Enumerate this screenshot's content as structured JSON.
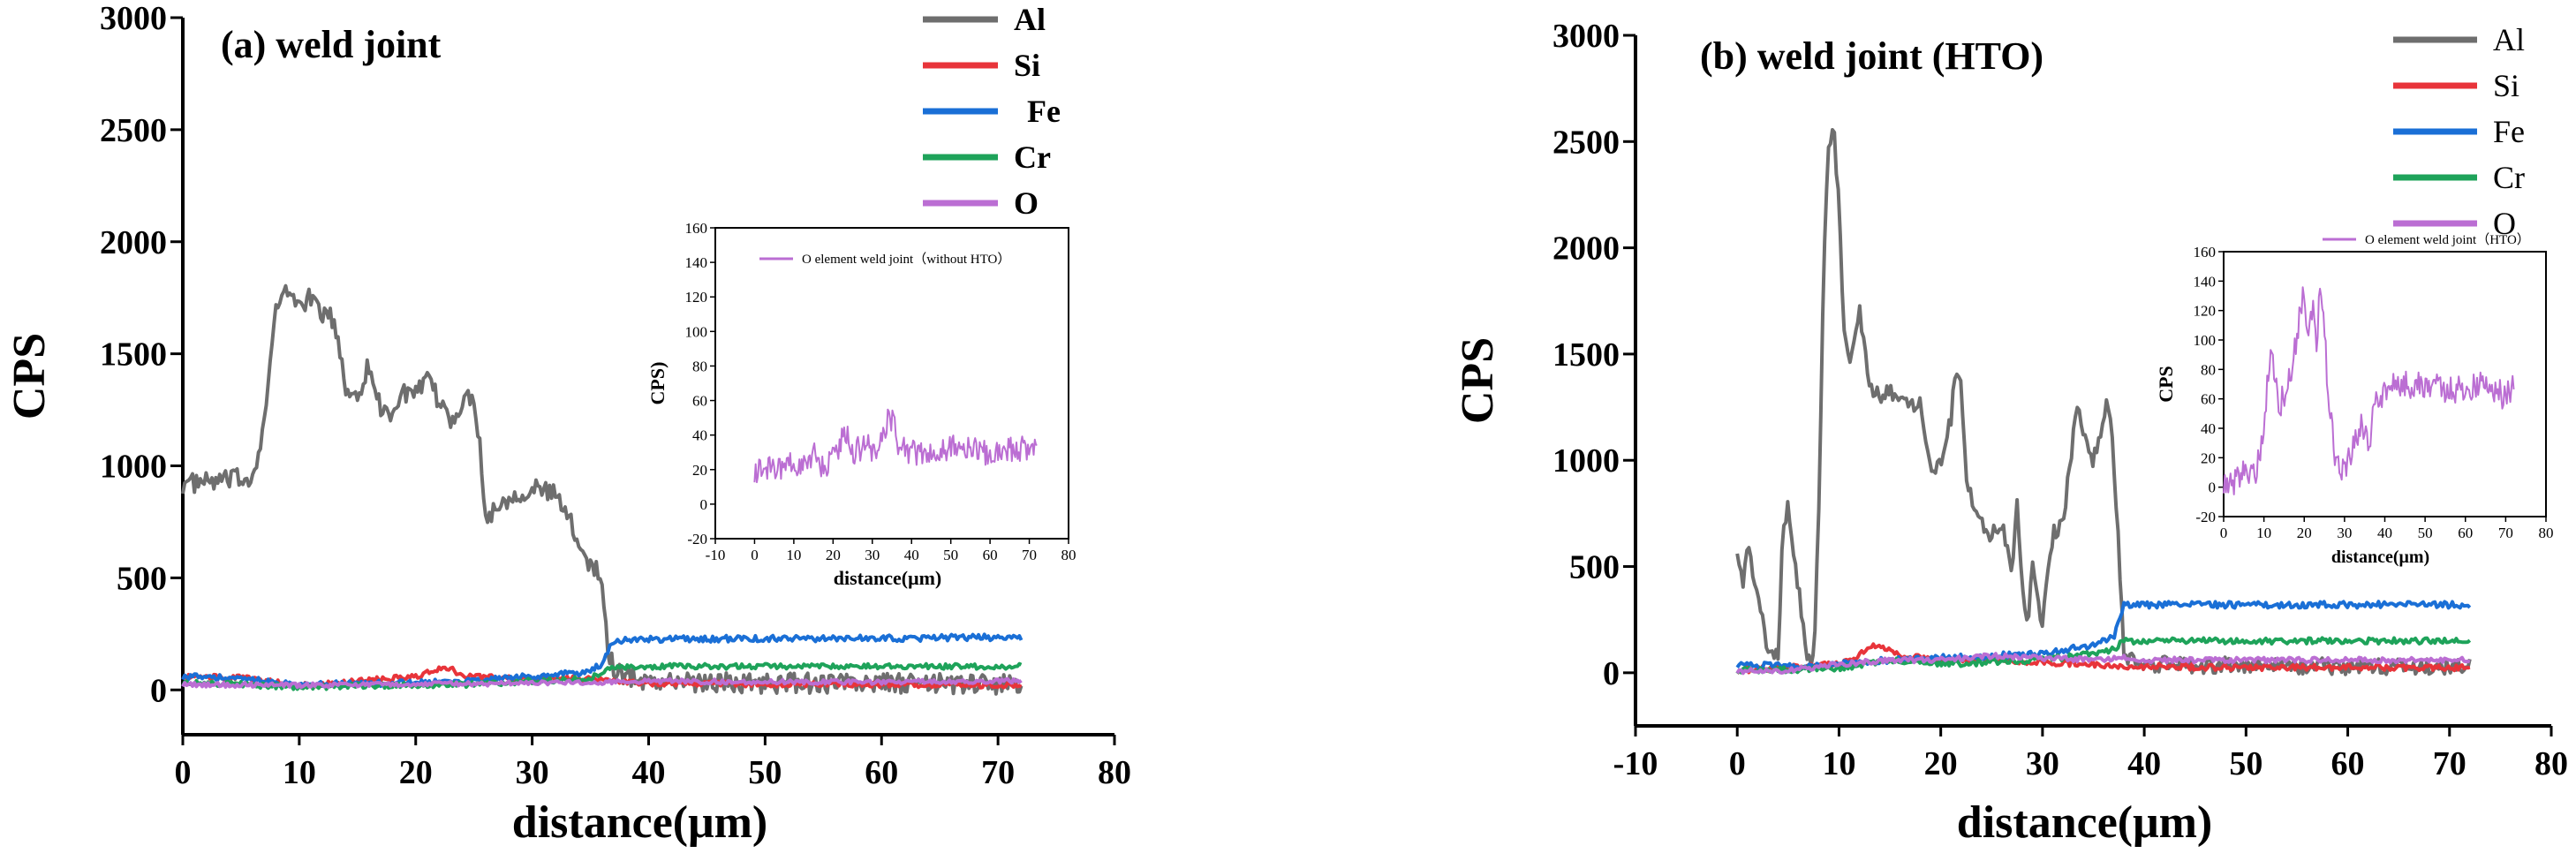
{
  "chart_data": [
    {
      "type": "line",
      "title": "(a) weld joint",
      "xlabel": "distance(μm)",
      "ylabel": "CPS",
      "xlim": [
        0,
        80
      ],
      "ylim": [
        -200,
        3000
      ],
      "xticks": [
        "0",
        "10",
        "20",
        "30",
        "40",
        "50",
        "60",
        "70",
        "80"
      ],
      "yticks": [
        "0",
        "500",
        "1000",
        "1500",
        "2000",
        "2500",
        "3000"
      ],
      "legend_position": "top-right",
      "series": [
        {
          "name": "Al",
          "color": "#6e6e6e",
          "noise": 45,
          "x": [
            0,
            3,
            6,
            7,
            8,
            9,
            10,
            11,
            12,
            13,
            14,
            15,
            16,
            17,
            18,
            19,
            20,
            21,
            22,
            23,
            24,
            25,
            25.5,
            26,
            27,
            28,
            29,
            30,
            31,
            32,
            33,
            34,
            35,
            35.5,
            36,
            36.5,
            37,
            40,
            50,
            60,
            70,
            72
          ],
          "y": [
            920,
            930,
            950,
            1200,
            1700,
            1780,
            1720,
            1750,
            1680,
            1650,
            1340,
            1320,
            1450,
            1250,
            1240,
            1330,
            1310,
            1380,
            1290,
            1200,
            1280,
            1320,
            1100,
            760,
            820,
            860,
            880,
            900,
            890,
            870,
            780,
            660,
            560,
            550,
            450,
            200,
            80,
            40,
            30,
            30,
            25,
            20
          ]
        },
        {
          "name": "Si",
          "color": "#e8343a",
          "noise": 12,
          "x": [
            0,
            5,
            10,
            15,
            20,
            22,
            23,
            24,
            30,
            35,
            40,
            50,
            60,
            70,
            72
          ],
          "y": [
            60,
            55,
            20,
            40,
            60,
            90,
            100,
            60,
            50,
            50,
            30,
            25,
            25,
            20,
            20
          ]
        },
        {
          "name": "Fe",
          "color": "#1a6fd6",
          "noise": 14,
          "x": [
            0,
            5,
            10,
            15,
            20,
            25,
            30,
            35,
            36,
            37,
            40,
            50,
            60,
            70,
            72
          ],
          "y": [
            60,
            50,
            20,
            30,
            30,
            40,
            60,
            80,
            120,
            220,
            225,
            230,
            230,
            235,
            235
          ]
        },
        {
          "name": "Cr",
          "color": "#1ea35a",
          "noise": 12,
          "x": [
            0,
            5,
            10,
            15,
            20,
            25,
            30,
            35,
            36,
            37,
            40,
            50,
            60,
            70,
            72
          ],
          "y": [
            30,
            25,
            10,
            20,
            20,
            25,
            40,
            50,
            80,
            100,
            105,
            105,
            105,
            105,
            105
          ]
        },
        {
          "name": "O",
          "color": "#bb6ed3",
          "noise": 10,
          "x": [
            0,
            10,
            20,
            30,
            36,
            40,
            50,
            60,
            70,
            72
          ],
          "y": [
            25,
            20,
            25,
            30,
            35,
            40,
            35,
            35,
            40,
            40
          ]
        }
      ],
      "inset": {
        "title": "",
        "xlabel": "distance(μm)",
        "ylabel": "CPS)",
        "xlim": [
          -10,
          80
        ],
        "ylim": [
          -20,
          160
        ],
        "xticks": [
          "-10",
          "0",
          "10",
          "20",
          "30",
          "40",
          "50",
          "60",
          "70",
          "80"
        ],
        "yticks": [
          "-20",
          "0",
          "20",
          "40",
          "60",
          "80",
          "100",
          "120",
          "140",
          "160"
        ],
        "series": [
          {
            "name": "O element weld joint（without HTO）",
            "color": "#bb6ed3",
            "noise": 8,
            "x": [
              0,
              5,
              8,
              10,
              12,
              15,
              18,
              20,
              22,
              23,
              25,
              28,
              30,
              33,
              34,
              35,
              37,
              40,
              45,
              50,
              55,
              60,
              65,
              70,
              72
            ],
            "y": [
              20,
              22,
              18,
              25,
              22,
              30,
              20,
              28,
              35,
              45,
              30,
              33,
              32,
              38,
              50,
              48,
              32,
              30,
              30,
              32,
              31,
              30,
              31,
              32,
              33
            ]
          }
        ]
      }
    },
    {
      "type": "line",
      "title": "(b) weld joint (HTO)",
      "xlabel": "distance(μm)",
      "ylabel": "CPS",
      "xlim": [
        -10,
        80
      ],
      "ylim": [
        -250,
        3000
      ],
      "xticks": [
        "-10",
        "0",
        "10",
        "20",
        "30",
        "40",
        "50",
        "60",
        "70",
        "80"
      ],
      "yticks": [
        "0",
        "500",
        "1000",
        "1500",
        "2000",
        "2500",
        "3000"
      ],
      "legend_position": "top-right",
      "series": [
        {
          "name": "Al",
          "color": "#6e6e6e",
          "noise": 40,
          "x": [
            0,
            0.5,
            1,
            2,
            3,
            4,
            4.5,
            5,
            6,
            7,
            7.5,
            8,
            8.5,
            9,
            9.5,
            10,
            10.5,
            11,
            12,
            13,
            14,
            15,
            16,
            17,
            18,
            19,
            20,
            21,
            21.5,
            22,
            22.5,
            23,
            24,
            25,
            26,
            27,
            27.5,
            28,
            28.5,
            29,
            30,
            31,
            32,
            33,
            33.5,
            34,
            35,
            36,
            36.5,
            37,
            37.5,
            38,
            40,
            50,
            60,
            70,
            72
          ],
          "y": [
            600,
            400,
            620,
            350,
            120,
            60,
            700,
            780,
            400,
            60,
            60,
            700,
            1900,
            2500,
            2550,
            2200,
            1600,
            1450,
            1700,
            1330,
            1300,
            1320,
            1300,
            1250,
            1300,
            950,
            1000,
            1200,
            1450,
            1350,
            950,
            820,
            700,
            650,
            700,
            500,
            800,
            400,
            200,
            550,
            220,
            650,
            700,
            1100,
            1250,
            1150,
            1000,
            1200,
            1280,
            1000,
            600,
            60,
            40,
            35,
            30,
            25,
            25
          ]
        },
        {
          "name": "Si",
          "color": "#e8343a",
          "noise": 14,
          "x": [
            0,
            10,
            12,
            13,
            14,
            15,
            16,
            20,
            25,
            30,
            35,
            38,
            40,
            50,
            60,
            70,
            72
          ],
          "y": [
            10,
            40,
            80,
            130,
            120,
            100,
            80,
            60,
            60,
            50,
            40,
            30,
            30,
            25,
            25,
            25,
            25
          ]
        },
        {
          "name": "Fe",
          "color": "#1a6fd6",
          "noise": 15,
          "x": [
            0,
            5,
            10,
            15,
            20,
            25,
            30,
            35,
            37,
            38,
            40,
            50,
            60,
            70,
            72
          ],
          "y": [
            40,
            30,
            40,
            60,
            70,
            80,
            90,
            130,
            170,
            320,
            320,
            320,
            320,
            320,
            320
          ]
        },
        {
          "name": "Cr",
          "color": "#1ea35a",
          "noise": 14,
          "x": [
            0,
            10,
            15,
            20,
            25,
            30,
            35,
            37,
            38,
            40,
            50,
            60,
            70,
            72
          ],
          "y": [
            10,
            20,
            60,
            40,
            50,
            60,
            90,
            110,
            150,
            150,
            150,
            150,
            150,
            150
          ]
        },
        {
          "name": "O",
          "color": "#bb6ed3",
          "noise": 12,
          "x": [
            0,
            5,
            10,
            15,
            20,
            25,
            30,
            35,
            38,
            40,
            50,
            60,
            70,
            72
          ],
          "y": [
            10,
            10,
            40,
            60,
            60,
            80,
            70,
            60,
            70,
            60,
            60,
            60,
            60,
            60
          ]
        }
      ],
      "inset": {
        "title": "",
        "xlabel": "distance(μm)",
        "ylabel": "CPS",
        "xlim": [
          0,
          80
        ],
        "ylim": [
          -20,
          160
        ],
        "xticks": [
          "0",
          "10",
          "20",
          "30",
          "40",
          "50",
          "60",
          "70",
          "80"
        ],
        "yticks": [
          "-20",
          "0",
          "20",
          "40",
          "60",
          "80",
          "100",
          "120",
          "140",
          "160"
        ],
        "series": [
          {
            "name": "O element weld joint（HTO）",
            "color": "#bb6ed3",
            "noise": 10,
            "x": [
              0,
              3,
              5,
              8,
              10,
              11,
              12,
              14,
              16,
              18,
              20,
              21,
              22,
              23,
              24,
              25,
              26,
              27,
              28,
              30,
              32,
              34,
              36,
              38,
              40,
              45,
              50,
              55,
              60,
              65,
              70,
              72
            ],
            "y": [
              5,
              5,
              10,
              12,
              35,
              80,
              90,
              55,
              70,
              100,
              140,
              95,
              125,
              90,
              145,
              110,
              50,
              40,
              10,
              15,
              25,
              45,
              30,
              60,
              65,
              70,
              70,
              65,
              68,
              70,
              62,
              72
            ]
          }
        ]
      }
    }
  ]
}
